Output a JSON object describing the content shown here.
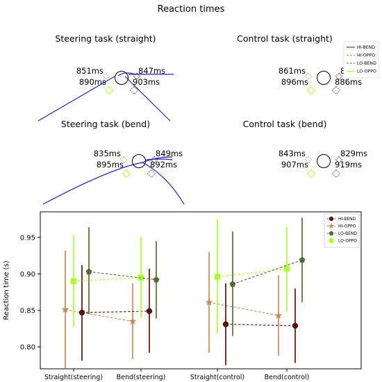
{
  "figure_title": "Reaction times",
  "panels": [
    {
      "title": "Steering task (straight)",
      "road": "straight",
      "labels": {
        "tl": "851ms",
        "tr": "847ms",
        "bl": "890ms",
        "br": "903ms"
      }
    },
    {
      "title": "Control task (straight)",
      "road": "none",
      "labels": {
        "tl": "861ms",
        "tr": "831ms",
        "bl": "896ms",
        "br": "886ms"
      }
    },
    {
      "title": "Steering task (bend)",
      "road": "bend",
      "labels": {
        "tl": "835ms",
        "tr": "849ms",
        "bl": "895ms",
        "br": "892ms"
      }
    },
    {
      "title": "Control task (bend)",
      "road": "none",
      "labels": {
        "tl": "843ms",
        "tr": "829ms",
        "bl": "907ms",
        "br": "919ms"
      }
    }
  ],
  "top_legend": [
    "HI-BEND",
    "HI-OPPO",
    "LO-BEND",
    "LO-OPPO"
  ],
  "colors": {
    "HI-BEND": "#5a1210",
    "HI-OPPO": "#c8885a",
    "LO-BEND": "#556b2f",
    "LO-OPPO": "#adff2f",
    "road": "#2020cc"
  },
  "chart_data": {
    "type": "line",
    "categories": [
      "Straight(steering)",
      "Bend(steering)",
      "Straight(control)",
      "Bend(control)"
    ],
    "ylabel": "Reaction time (s)",
    "xlabel": "",
    "ylim": [
      0.77,
      0.985
    ],
    "yticks": [
      0.8,
      0.85,
      0.9,
      0.95
    ],
    "legend_position": "top-right",
    "grid": false,
    "series": [
      {
        "name": "HI-BEND",
        "marker": "circle",
        "values": [
          0.847,
          0.849,
          0.831,
          0.829
        ],
        "err_low": [
          0.781,
          0.792,
          0.775,
          0.778
        ],
        "err_high": [
          0.912,
          0.907,
          0.887,
          0.88
        ]
      },
      {
        "name": "HI-OPPO",
        "marker": "star",
        "values": [
          0.851,
          0.835,
          0.861,
          0.843
        ],
        "err_low": [
          0.771,
          0.783,
          0.792,
          0.788
        ],
        "err_high": [
          0.932,
          0.887,
          0.93,
          0.898
        ]
      },
      {
        "name": "LO-BEND",
        "marker": "pentagon",
        "values": [
          0.903,
          0.892,
          0.886,
          0.919
        ],
        "err_low": [
          0.845,
          0.839,
          0.815,
          0.861
        ],
        "err_high": [
          0.964,
          0.945,
          0.958,
          0.977
        ]
      },
      {
        "name": "LO-OPPO",
        "marker": "square",
        "values": [
          0.89,
          0.895,
          0.896,
          0.907
        ],
        "err_low": [
          0.828,
          0.84,
          0.818,
          0.848
        ],
        "err_high": [
          0.953,
          0.951,
          0.975,
          0.964
        ]
      }
    ]
  }
}
